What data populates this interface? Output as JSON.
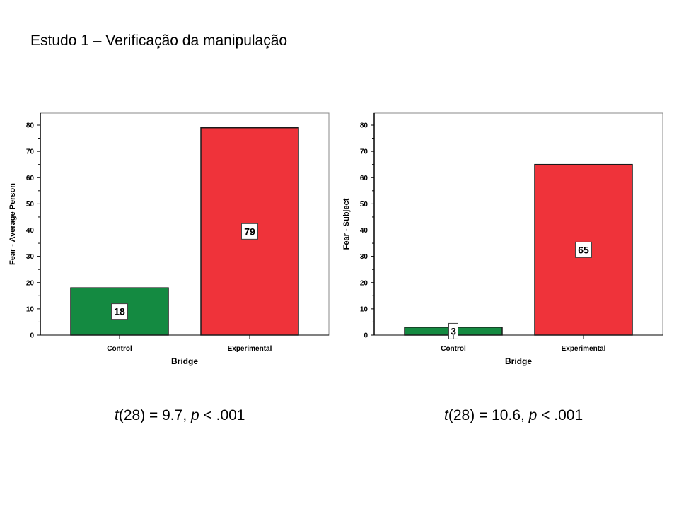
{
  "title": "Estudo 1 – Verificação da manipulação",
  "colors": {
    "control": "#148a41",
    "experimental": "#ef333a"
  },
  "chart_data": [
    {
      "type": "bar",
      "categories": [
        "Control",
        "Experimental"
      ],
      "values": [
        18,
        79
      ],
      "xlabel": "Bridge",
      "ylabel": "Fear - Average Person",
      "ylim": [
        0,
        80
      ],
      "yticks": [
        0,
        10,
        20,
        30,
        40,
        50,
        60,
        70,
        80
      ],
      "grid": false,
      "stat": {
        "t_label": "t",
        "t_expr": "(28) = 9.7, ",
        "p_label": "p",
        "p_expr": " < .001"
      }
    },
    {
      "type": "bar",
      "categories": [
        "Control",
        "Experimental"
      ],
      "values": [
        3,
        65
      ],
      "xlabel": "Bridge",
      "ylabel": "Fear - Subject",
      "ylim": [
        0,
        80
      ],
      "yticks": [
        0,
        10,
        20,
        30,
        40,
        50,
        60,
        70,
        80
      ],
      "grid": false,
      "stat": {
        "t_label": "t",
        "t_expr": "(28) = 10.6, ",
        "p_label": "p",
        "p_expr": " < .001"
      }
    }
  ]
}
